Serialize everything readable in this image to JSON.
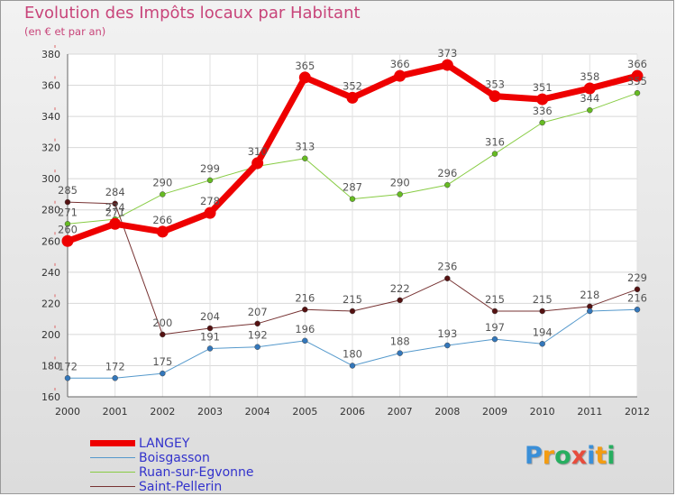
{
  "chart_data": {
    "type": "line",
    "title": "Evolution des Impôts locaux par Habitant",
    "subtitle": "(en € et par an)",
    "x": [
      "2000",
      "2001",
      "2002",
      "2003",
      "2004",
      "2005",
      "2006",
      "2007",
      "2008",
      "2009",
      "2010",
      "2011",
      "2012"
    ],
    "ylim": [
      160,
      380
    ],
    "yticks": [
      160,
      180,
      200,
      220,
      240,
      260,
      280,
      300,
      320,
      340,
      360,
      380
    ],
    "grid": true,
    "legend_placement": "bottom-left",
    "series": [
      {
        "name": "Ruan-sur-Egvonne",
        "color": "#88cc44",
        "marker": "#66bb22",
        "width": 1,
        "values": [
          271,
          274,
          290,
          299,
          308,
          313,
          287,
          290,
          296,
          316,
          336,
          344,
          355
        ],
        "labels": [
          "271",
          "274",
          "290",
          "299",
          "",
          "313",
          "287",
          "290",
          "296",
          "316",
          "336",
          "344",
          "355"
        ]
      },
      {
        "name": "Saint-Pellerin",
        "color": "#773333",
        "marker": "#551111",
        "width": 1,
        "values": [
          285,
          284,
          200,
          204,
          207,
          216,
          215,
          222,
          236,
          215,
          215,
          218,
          229
        ],
        "labels": [
          "285",
          "284",
          "200",
          "204",
          "207",
          "216",
          "215",
          "222",
          "236",
          "215",
          "215",
          "218",
          "229"
        ]
      },
      {
        "name": "Boisgasson",
        "color": "#5599cc",
        "marker": "#3377bb",
        "width": 1,
        "values": [
          172,
          172,
          175,
          191,
          192,
          196,
          180,
          188,
          193,
          197,
          194,
          215,
          216
        ],
        "labels": [
          "172",
          "172",
          "175",
          "191",
          "192",
          "196",
          "180",
          "188",
          "193",
          "197",
          "194",
          "",
          "216"
        ]
      },
      {
        "name": "LANGEY",
        "color": "#ee0000",
        "marker": "#ee0000",
        "width": 7,
        "values": [
          260,
          271,
          266,
          278,
          310,
          365,
          352,
          366,
          373,
          353,
          351,
          358,
          366
        ],
        "labels": [
          "260",
          "271",
          "266",
          "278",
          "310",
          "365",
          "352",
          "366",
          "373",
          "353",
          "351",
          "358",
          "366"
        ]
      }
    ]
  },
  "legend": {
    "items": [
      {
        "label": "LANGEY",
        "color": "#ee0000",
        "thickness": 7
      },
      {
        "label": "Boisgasson",
        "color": "#5599cc",
        "thickness": 1
      },
      {
        "label": "Ruan-sur-Egvonne",
        "color": "#88cc44",
        "thickness": 1
      },
      {
        "label": "Saint-Pellerin",
        "color": "#773333",
        "thickness": 1
      }
    ]
  },
  "logo": {
    "letters": [
      "P",
      "r",
      "o",
      "x",
      "i",
      "t",
      "i"
    ],
    "colors": [
      "#3a8fd8",
      "#f39c12",
      "#27ae60",
      "#e74c3c",
      "#3a8fd8",
      "#f39c12",
      "#27ae60"
    ]
  }
}
